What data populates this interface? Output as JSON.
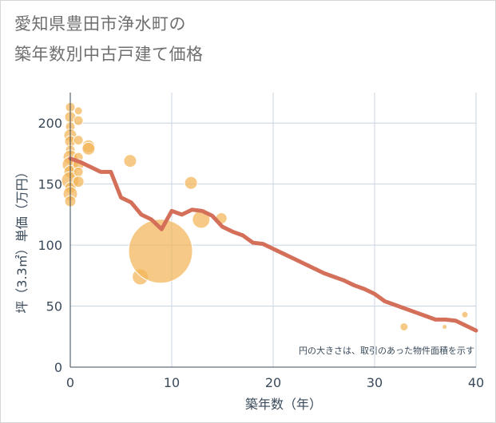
{
  "title": {
    "line1": "愛知県豊田市浄水町の",
    "line2": "築年数別中古戸建て価格"
  },
  "chart_data": {
    "type": "scatter",
    "xlabel": "築年数（年）",
    "ylabel": "坪（3.3㎡）単価（万円）",
    "xlim": [
      0,
      40
    ],
    "ylim": [
      0,
      225
    ],
    "xticks": [
      0,
      10,
      20,
      30,
      40
    ],
    "yticks": [
      0,
      50,
      100,
      150,
      200
    ],
    "grid": true,
    "note": "円の大きさは、取引のあった物件面積を示す",
    "colors": {
      "bubble": "#f3b558",
      "line": "#d4705a",
      "grid": "#c8d4e0",
      "axis": "#3a4a5a"
    },
    "bubbles": [
      {
        "x": 0,
        "y": 213,
        "size": 6
      },
      {
        "x": 0,
        "y": 205,
        "size": 7
      },
      {
        "x": 0,
        "y": 197,
        "size": 6
      },
      {
        "x": 0,
        "y": 190,
        "size": 8
      },
      {
        "x": 0,
        "y": 185,
        "size": 7
      },
      {
        "x": 0,
        "y": 178,
        "size": 6
      },
      {
        "x": 0,
        "y": 172,
        "size": 9
      },
      {
        "x": 0,
        "y": 166,
        "size": 10
      },
      {
        "x": 0,
        "y": 160,
        "size": 8
      },
      {
        "x": 0,
        "y": 153,
        "size": 11
      },
      {
        "x": 0,
        "y": 147,
        "size": 7
      },
      {
        "x": 0,
        "y": 142,
        "size": 9
      },
      {
        "x": 0,
        "y": 136,
        "size": 7
      },
      {
        "x": 0.8,
        "y": 210,
        "size": 5
      },
      {
        "x": 0.8,
        "y": 202,
        "size": 6
      },
      {
        "x": 0.8,
        "y": 186,
        "size": 6
      },
      {
        "x": 0.8,
        "y": 172,
        "size": 6
      },
      {
        "x": 0.8,
        "y": 166,
        "size": 7
      },
      {
        "x": 0.8,
        "y": 160,
        "size": 6
      },
      {
        "x": 0.8,
        "y": 152,
        "size": 7
      },
      {
        "x": 1.8,
        "y": 181,
        "size": 8
      },
      {
        "x": 1.8,
        "y": 179,
        "size": 8
      },
      {
        "x": 5.9,
        "y": 169,
        "size": 8
      },
      {
        "x": 6.9,
        "y": 74,
        "size": 10
      },
      {
        "x": 8.9,
        "y": 95,
        "size": 40
      },
      {
        "x": 11.9,
        "y": 151,
        "size": 8
      },
      {
        "x": 12.9,
        "y": 121,
        "size": 11
      },
      {
        "x": 14.9,
        "y": 122,
        "size": 7
      },
      {
        "x": 32.9,
        "y": 33,
        "size": 5
      },
      {
        "x": 36.9,
        "y": 33,
        "size": 3
      },
      {
        "x": 38.9,
        "y": 43,
        "size": 4
      }
    ],
    "series": [
      {
        "type": "line",
        "x": [
          0,
          1,
          2,
          3,
          4,
          5,
          6,
          7,
          8,
          9,
          10,
          11,
          12,
          13,
          14,
          15,
          16,
          17,
          18,
          19,
          20,
          21,
          22,
          23,
          24,
          25,
          26,
          27,
          28,
          29,
          30,
          31,
          32,
          33,
          34,
          35,
          36,
          37,
          38,
          39,
          40
        ],
        "y": [
          171,
          168,
          164,
          160,
          160,
          139,
          135,
          125,
          121,
          113,
          128,
          125,
          129,
          128,
          124,
          115,
          111,
          108,
          102,
          101,
          97,
          93,
          89,
          85,
          81,
          77,
          74,
          71,
          67,
          64,
          60,
          54,
          51,
          48,
          45,
          42,
          39,
          39,
          38,
          34,
          30
        ]
      }
    ]
  }
}
